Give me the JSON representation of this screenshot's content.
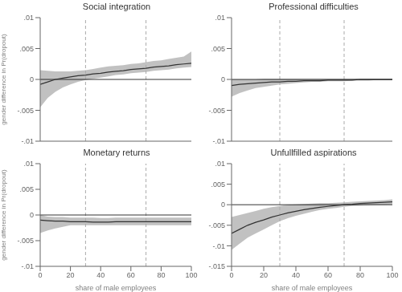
{
  "chart_data": [
    {
      "type": "line",
      "title": "Social integration",
      "ylabel": "gender difference in Pr(dropout)",
      "tick_labels": "y",
      "x": [
        0,
        5,
        10,
        15,
        20,
        25,
        30,
        35,
        40,
        45,
        50,
        55,
        60,
        65,
        70,
        75,
        80,
        85,
        90,
        95,
        100
      ],
      "values": [
        -0.0008,
        -0.0004,
        0.0,
        0.0002,
        0.0004,
        0.0006,
        0.0007,
        0.0009,
        0.001,
        0.0012,
        0.0013,
        0.0014,
        0.0016,
        0.0017,
        0.0018,
        0.002,
        0.0021,
        0.0022,
        0.0024,
        0.0025,
        0.0026
      ],
      "ci_lower": [
        -0.0045,
        -0.003,
        -0.002,
        -0.0013,
        -0.0008,
        -0.0004,
        -0.0001,
        0.0001,
        0.0003,
        0.0005,
        0.0007,
        0.0008,
        0.001,
        0.0011,
        0.0012,
        0.0014,
        0.0015,
        0.0016,
        0.0018,
        0.0019,
        0.002
      ],
      "ci_upper": [
        0.0015,
        0.0014,
        0.0013,
        0.0013,
        0.0013,
        0.0014,
        0.0015,
        0.0017,
        0.0019,
        0.0021,
        0.0022,
        0.0023,
        0.0025,
        0.0026,
        0.0028,
        0.003,
        0.0031,
        0.0033,
        0.0035,
        0.0037,
        0.0045
      ],
      "color": "#333333",
      "xlim": [
        0,
        100
      ],
      "xticks": [
        0,
        20,
        40,
        60,
        80,
        100
      ],
      "ylim": [
        -0.01,
        0.01
      ],
      "yticks": [
        {
          "value": -0.01,
          "label": "-.01"
        },
        {
          "value": -0.005,
          "label": "-.005"
        },
        0,
        {
          "value": 0.005,
          "label": ".005"
        },
        {
          "value": 0.01,
          "label": ".01"
        }
      ],
      "vlines": [
        30,
        70
      ],
      "hlines": [
        0
      ]
    },
    {
      "type": "line",
      "title": "Professional difficulties",
      "tick_labels": "y",
      "x": [
        0,
        5,
        10,
        15,
        20,
        25,
        30,
        35,
        40,
        45,
        50,
        55,
        60,
        65,
        70,
        75,
        80,
        85,
        90,
        95,
        100
      ],
      "values": [
        -0.001,
        -0.0008,
        -0.0007,
        -0.0006,
        -0.0005,
        -0.0004,
        -0.0004,
        -0.0003,
        -0.0003,
        -0.0002,
        -0.0002,
        -0.0002,
        -0.0001,
        -0.0001,
        -0.0001,
        -0.0001,
        0.0,
        0.0,
        0.0,
        0.0,
        0.0
      ],
      "ci_lower": [
        -0.0028,
        -0.0022,
        -0.0018,
        -0.0014,
        -0.0012,
        -0.001,
        -0.0008,
        -0.0007,
        -0.0006,
        -0.0005,
        -0.0004,
        -0.0004,
        -0.0003,
        -0.0003,
        -0.0003,
        -0.0002,
        -0.0002,
        -0.0002,
        -0.0001,
        -0.0001,
        -0.0001
      ],
      "ci_upper": [
        0.0,
        0.0,
        0.0,
        0.0,
        0.0001,
        0.0001,
        0.0001,
        0.0001,
        0.0001,
        0.0001,
        0.0001,
        0.0001,
        0.0001,
        0.0001,
        0.0001,
        0.0001,
        0.0001,
        0.0001,
        0.0001,
        0.0001,
        0.0001
      ],
      "color": "#333333",
      "xlim": [
        0,
        100
      ],
      "xticks": [
        0,
        20,
        40,
        60,
        80,
        100
      ],
      "ylim": [
        -0.01,
        0.01
      ],
      "yticks": [
        {
          "value": -0.01,
          "label": "-.01"
        },
        {
          "value": -0.005,
          "label": "-.005"
        },
        0,
        {
          "value": 0.005,
          "label": ".005"
        },
        {
          "value": 0.01,
          "label": ".01"
        }
      ],
      "vlines": [
        30,
        70
      ],
      "hlines": [
        0
      ]
    },
    {
      "type": "line",
      "title": "Monetary returns",
      "ylabel": "gender difference in Pr(dropout)",
      "xlabel": "share of male employees",
      "x": [
        0,
        5,
        10,
        15,
        20,
        25,
        30,
        35,
        40,
        45,
        50,
        55,
        60,
        65,
        70,
        75,
        80,
        85,
        90,
        95,
        100
      ],
      "values": [
        -0.001,
        -0.0011,
        -0.0012,
        -0.0012,
        -0.0013,
        -0.0013,
        -0.0013,
        -0.0014,
        -0.0014,
        -0.0014,
        -0.0013,
        -0.0013,
        -0.0013,
        -0.0013,
        -0.0013,
        -0.0013,
        -0.0013,
        -0.0013,
        -0.0013,
        -0.0013,
        -0.0013
      ],
      "ci_lower": [
        -0.0035,
        -0.003,
        -0.0026,
        -0.0023,
        -0.002,
        -0.002,
        -0.002,
        -0.002,
        -0.002,
        -0.002,
        -0.002,
        -0.002,
        -0.002,
        -0.002,
        -0.002,
        -0.002,
        -0.002,
        -0.002,
        -0.002,
        -0.002,
        -0.002
      ],
      "ci_upper": [
        0.0,
        -0.0003,
        -0.0004,
        -0.0004,
        -0.0005,
        -0.0005,
        -0.0005,
        -0.0005,
        -0.0006,
        -0.0006,
        -0.0005,
        -0.0005,
        -0.0005,
        -0.0005,
        -0.0005,
        -0.0005,
        -0.0005,
        -0.0005,
        -0.0005,
        -0.0005,
        -0.0005
      ],
      "color": "#333333",
      "xlim": [
        0,
        100
      ],
      "xticks": [
        0,
        20,
        40,
        60,
        80,
        100
      ],
      "ylim": [
        -0.01,
        0.01
      ],
      "yticks": [
        {
          "value": -0.01,
          "label": "-.01"
        },
        {
          "value": -0.005,
          "label": "-.005"
        },
        0,
        {
          "value": 0.005,
          "label": ".005"
        },
        {
          "value": 0.01,
          "label": ".01"
        }
      ],
      "vlines": [
        30,
        70
      ],
      "hlines": [
        0
      ]
    },
    {
      "type": "line",
      "title": "Unfullfilled aspirations",
      "xlabel": "share of male employees",
      "x": [
        0,
        5,
        10,
        15,
        20,
        25,
        30,
        35,
        40,
        45,
        50,
        55,
        60,
        65,
        70,
        75,
        80,
        85,
        90,
        95,
        100
      ],
      "values": [
        -0.007,
        -0.006,
        -0.005,
        -0.0043,
        -0.0037,
        -0.003,
        -0.0025,
        -0.002,
        -0.0016,
        -0.0012,
        -0.0009,
        -0.0006,
        -0.0004,
        -0.0002,
        0.0,
        0.0001,
        0.0003,
        0.0004,
        0.0005,
        0.0006,
        0.0007
      ],
      "ci_lower": [
        -0.011,
        -0.0095,
        -0.008,
        -0.007,
        -0.006,
        -0.005,
        -0.004,
        -0.0033,
        -0.0027,
        -0.0022,
        -0.0017,
        -0.0013,
        -0.001,
        -0.0008,
        -0.0005,
        -0.0003,
        -0.0002,
        -0.0001,
        0.0,
        0.0,
        0.0001
      ],
      "ci_upper": [
        -0.003,
        -0.0025,
        -0.002,
        -0.0015,
        -0.001,
        -0.0006,
        -0.0003,
        0.0,
        0.0001,
        0.0002,
        0.0003,
        0.0004,
        0.0004,
        0.0005,
        0.0006,
        0.0007,
        0.0008,
        0.0009,
        0.001,
        0.0011,
        0.0013
      ],
      "color": "#333333",
      "xlim": [
        0,
        100
      ],
      "xticks": [
        0,
        20,
        40,
        60,
        80,
        100
      ],
      "ylim": [
        -0.015,
        0.01
      ],
      "yticks": [
        {
          "value": -0.015,
          "label": "-.015"
        },
        {
          "value": -0.01,
          "label": "-.01"
        },
        {
          "value": -0.005,
          "label": "-.005"
        },
        0,
        {
          "value": 0.005,
          "label": ".005"
        },
        {
          "value": 0.01,
          "label": ".01"
        }
      ],
      "vlines": [
        30,
        70
      ],
      "hlines": [
        0
      ]
    }
  ]
}
